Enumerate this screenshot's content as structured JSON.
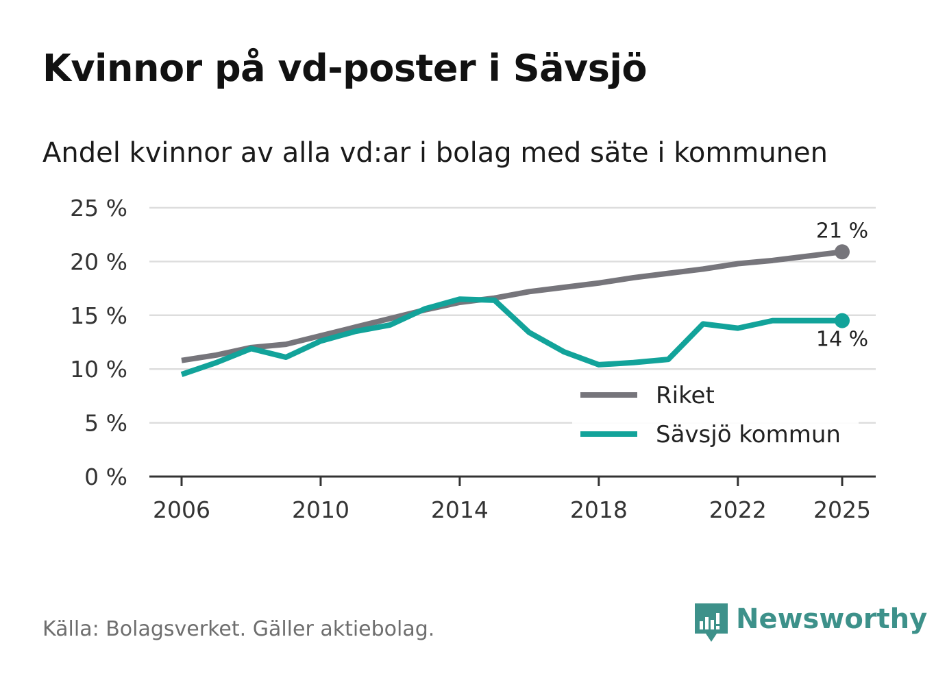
{
  "title": "Kvinnor på vd-poster i Sävsjö",
  "subtitle": "Andel kvinnor av alla vd:ar i bolag med säte i kommunen",
  "source": "Källa: Bolagsverket. Gäller aktiebolag.",
  "brand": {
    "name": "Newsworthy",
    "icon": "newsworthy-logo-icon",
    "color": "#3d918a"
  },
  "chart_data": {
    "type": "line",
    "title": "Kvinnor på vd-poster i Sävsjö",
    "subtitle": "Andel kvinnor av alla vd:ar i bolag med säte i kommunen",
    "xlabel": "",
    "ylabel": "",
    "ylim": [
      0,
      25
    ],
    "yticks": [
      0,
      5,
      10,
      15,
      20,
      25
    ],
    "ytick_labels": [
      "0 %",
      "5 %",
      "10 %",
      "15 %",
      "20 %",
      "25 %"
    ],
    "xticks": [
      2006,
      2010,
      2014,
      2018,
      2022,
      2025
    ],
    "xtick_labels": [
      "2006",
      "2010",
      "2014",
      "2018",
      "2022",
      "2025"
    ],
    "grid": true,
    "legend_position": "bottom-right",
    "x": [
      2006,
      2007,
      2008,
      2009,
      2010,
      2011,
      2012,
      2013,
      2014,
      2015,
      2016,
      2017,
      2018,
      2019,
      2020,
      2021,
      2022,
      2023,
      2024,
      2025
    ],
    "series": [
      {
        "name": "Riket",
        "color": "#76757b",
        "values": [
          10.8,
          11.3,
          12.0,
          12.3,
          13.1,
          13.9,
          14.7,
          15.5,
          16.2,
          16.6,
          17.2,
          17.6,
          18.0,
          18.5,
          18.9,
          19.3,
          19.8,
          20.1,
          20.5,
          20.9
        ],
        "end_label": "21 %"
      },
      {
        "name": "Sävsjö kommun",
        "color": "#12a39a",
        "values": [
          9.5,
          10.6,
          11.9,
          11.1,
          12.6,
          13.5,
          14.1,
          15.6,
          16.5,
          16.4,
          13.4,
          11.6,
          10.4,
          10.6,
          10.9,
          14.2,
          13.8,
          14.5,
          14.5,
          14.5
        ],
        "end_label": "14 %"
      }
    ]
  }
}
